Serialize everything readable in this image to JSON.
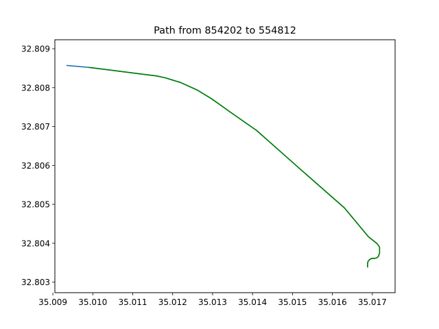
{
  "chart_data": {
    "type": "line",
    "title": "Path from 854202 to 554812",
    "xlabel": "",
    "ylabel": "",
    "xlim": [
      35.00905,
      35.01757
    ],
    "ylim": [
      32.80273,
      32.80923
    ],
    "xticks": [
      35.009,
      35.01,
      35.011,
      35.012,
      35.013,
      35.014,
      35.015,
      35.016,
      35.017
    ],
    "xtick_labels": [
      "35.009",
      "35.010",
      "35.011",
      "35.012",
      "35.013",
      "35.014",
      "35.015",
      "35.016",
      "35.017"
    ],
    "yticks": [
      32.803,
      32.804,
      32.805,
      32.806,
      32.807,
      32.808,
      32.809
    ],
    "ytick_labels": [
      "32.803",
      "32.804",
      "32.805",
      "32.806",
      "32.807",
      "32.808",
      "32.809"
    ],
    "grid": false,
    "series": [
      {
        "color": "#1f77b4",
        "x": [
          35.00934,
          35.0099,
          35.0106,
          35.0112,
          35.0116,
          35.01182,
          35.0122,
          35.01261,
          35.01298,
          35.0135,
          35.0141,
          35.0152,
          35.0163,
          35.0169,
          35.01712,
          35.01718,
          35.01718,
          35.01715,
          35.0171,
          35.01704,
          35.01698,
          35.01693,
          35.01689,
          35.01688,
          35.01688
        ],
        "y": [
          32.80857,
          32.80852,
          32.80843,
          32.80835,
          32.8083,
          32.80825,
          32.80813,
          32.80794,
          32.80771,
          32.80733,
          32.8069,
          32.8059,
          32.80491,
          32.80417,
          32.80399,
          32.8039,
          32.80375,
          32.80366,
          32.80362,
          32.80361,
          32.80361,
          32.80358,
          32.80353,
          32.80346,
          32.80338
        ]
      },
      {
        "color": "#008000",
        "x": [
          35.0099,
          35.0106,
          35.0112,
          35.0116,
          35.01182,
          35.0122,
          35.01261,
          35.01298,
          35.0135,
          35.0141,
          35.0152,
          35.0163,
          35.0169,
          35.01712,
          35.01718,
          35.01718,
          35.01715,
          35.0171,
          35.01704,
          35.01698,
          35.01693,
          35.01689,
          35.01688,
          35.01688
        ],
        "y": [
          32.80852,
          32.80843,
          32.80835,
          32.8083,
          32.80825,
          32.80813,
          32.80794,
          32.80771,
          32.80733,
          32.8069,
          32.8059,
          32.80491,
          32.80417,
          32.80399,
          32.8039,
          32.80375,
          32.80366,
          32.80362,
          32.80361,
          32.80361,
          32.80358,
          32.80353,
          32.80346,
          32.80338
        ]
      }
    ]
  }
}
